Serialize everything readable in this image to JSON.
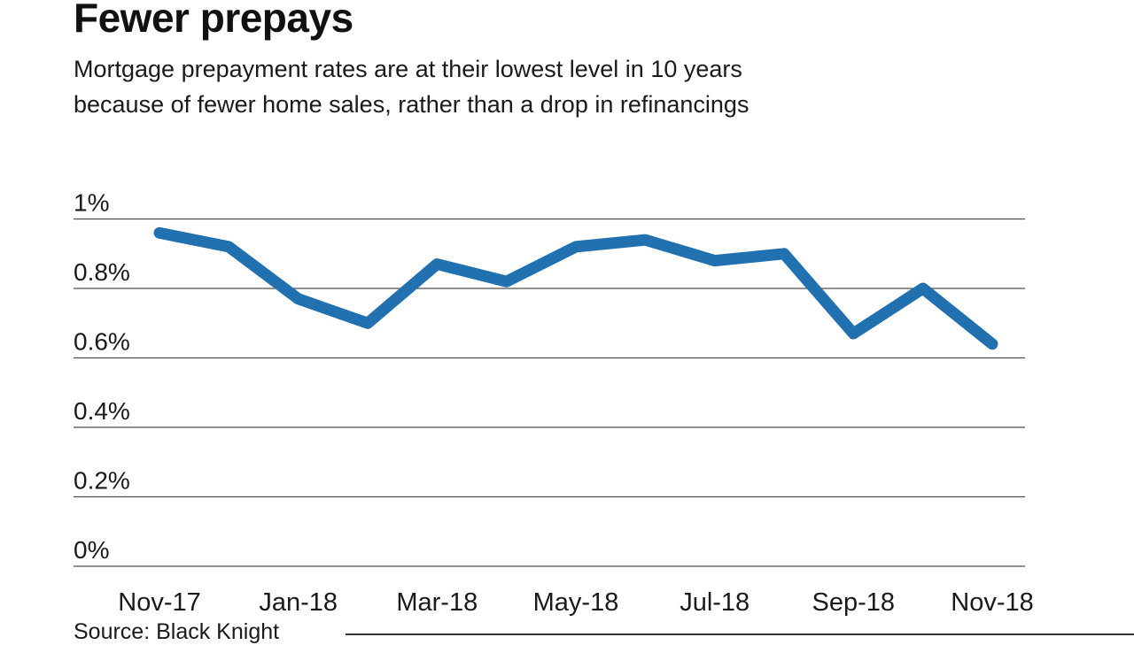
{
  "header": {
    "title": "Fewer prepays",
    "subtitle_line1": "Mortgage prepayment rates are at their lowest level in 10 years",
    "subtitle_line2": "because of fewer home sales, rather than a drop in refinancings"
  },
  "source": {
    "label": "Source: Black Knight"
  },
  "chart_data": {
    "type": "line",
    "title": "Fewer prepays",
    "subtitle": "Mortgage prepayment rates are at their lowest level in 10 years because of fewer home sales, rather than a drop in refinancings",
    "x": [
      "Nov-17",
      "Dec-17",
      "Jan-18",
      "Feb-18",
      "Mar-18",
      "Apr-18",
      "May-18",
      "Jun-18",
      "Jul-18",
      "Aug-18",
      "Sep-18",
      "Oct-18",
      "Nov-18"
    ],
    "series": [
      {
        "name": "Mortgage prepayment rate",
        "values": [
          0.96,
          0.92,
          0.77,
          0.7,
          0.87,
          0.82,
          0.92,
          0.94,
          0.88,
          0.9,
          0.67,
          0.8,
          0.64
        ]
      }
    ],
    "x_tick_labels": [
      "Nov-17",
      "Jan-18",
      "Mar-18",
      "May-18",
      "Jul-18",
      "Sep-18",
      "Nov-18"
    ],
    "y_ticks": [
      0,
      0.2,
      0.4,
      0.6,
      0.8,
      1
    ],
    "y_tick_labels": [
      "0%",
      "0.2%",
      "0.4%",
      "0.6%",
      "0.8%",
      "1%"
    ],
    "ylim": [
      0,
      1.05
    ],
    "xlabel": "",
    "ylabel": "",
    "grid": true,
    "legend_position": "none",
    "line_color": "#2170b0",
    "grid_color": "#4d4d4d",
    "text_color": "#1a1a1a",
    "source": "Source: Black Knight"
  }
}
